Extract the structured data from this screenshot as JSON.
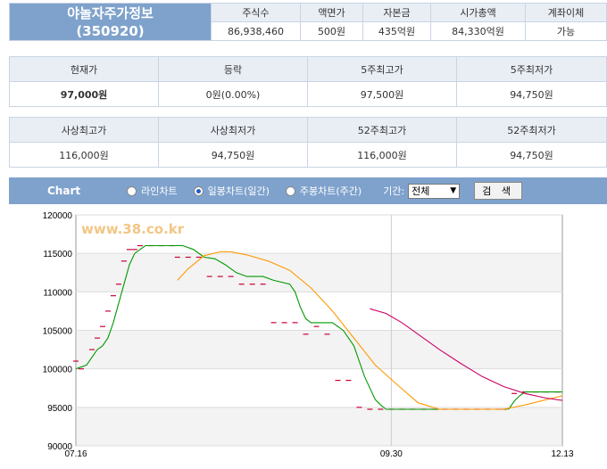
{
  "stock": {
    "name": "야놀자주가정보",
    "code": "(350920)"
  },
  "summary": {
    "headers": [
      "주식수",
      "액면가",
      "자본금",
      "시가총액",
      "계좌이체"
    ],
    "values": [
      "86,938,460",
      "500원",
      "435억원",
      "84,330억원",
      "가능"
    ]
  },
  "price": {
    "headers": [
      "현재가",
      "등락",
      "5주최고가",
      "5주최저가"
    ],
    "values": [
      "97,000원",
      "0원(0.00%)",
      "97,500원",
      "94,750원"
    ]
  },
  "history": {
    "headers": [
      "사상최고가",
      "사상최저가",
      "52주최고가",
      "52주최저가"
    ],
    "values": [
      "116,000원",
      "94,750원",
      "116,000원",
      "94,750원"
    ]
  },
  "chart_bar": {
    "label": "Chart",
    "options": [
      "라인차트",
      "일봉차트(일간)",
      "주봉차트(주간)"
    ],
    "selected_option": "일봉차트(일간)",
    "period_label": "기간:",
    "period_value": "전체",
    "search_label": "검 색"
  },
  "chart_data": {
    "type": "line",
    "watermark": "www.38.co.kr",
    "ylim": [
      90000,
      120000
    ],
    "y_ticks": [
      "120000",
      "115000",
      "110000",
      "105000",
      "100000",
      "95000",
      "90000"
    ],
    "x_ticks": [
      "07.16",
      "09.30",
      "12.13"
    ],
    "colors": {
      "price": "#009900",
      "ma_short": "#ff9900",
      "ma_long": "#cc0066",
      "daily": "#cc0033"
    },
    "series": [
      {
        "name": "price",
        "points": [
          [
            0,
            100000
          ],
          [
            2,
            100500
          ],
          [
            3,
            101500
          ],
          [
            4,
            102500
          ],
          [
            5,
            103000
          ],
          [
            6,
            104000
          ],
          [
            7,
            106000
          ],
          [
            8,
            108500
          ],
          [
            9,
            111000
          ],
          [
            10,
            113500
          ],
          [
            11,
            115000
          ],
          [
            12,
            115500
          ],
          [
            13,
            116000
          ],
          [
            20,
            116000
          ],
          [
            22,
            115500
          ],
          [
            24,
            114500
          ],
          [
            26,
            114300
          ],
          [
            28,
            113500
          ],
          [
            30,
            112500
          ],
          [
            32,
            112000
          ],
          [
            35,
            112000
          ],
          [
            37,
            111500
          ],
          [
            40,
            111000
          ],
          [
            41,
            110000
          ],
          [
            42,
            108000
          ],
          [
            43,
            106500
          ],
          [
            44,
            106000
          ],
          [
            48,
            106000
          ],
          [
            50,
            105000
          ],
          [
            52,
            103000
          ],
          [
            53,
            101000
          ],
          [
            54,
            99000
          ],
          [
            55,
            97500
          ],
          [
            56,
            96000
          ],
          [
            57,
            95300
          ],
          [
            58,
            94750
          ],
          [
            80,
            94750
          ],
          [
            81,
            94800
          ],
          [
            82,
            95800
          ],
          [
            83,
            96500
          ],
          [
            84,
            97000
          ],
          [
            91,
            97000
          ]
        ]
      },
      {
        "name": "ma_short",
        "points": [
          [
            19,
            111500
          ],
          [
            21,
            113000
          ],
          [
            24,
            114700
          ],
          [
            27,
            115200
          ],
          [
            29,
            115200
          ],
          [
            32,
            114800
          ],
          [
            36,
            114000
          ],
          [
            40,
            112800
          ],
          [
            44,
            110500
          ],
          [
            48,
            107500
          ],
          [
            52,
            104000
          ],
          [
            56,
            100500
          ],
          [
            60,
            98000
          ],
          [
            64,
            95600
          ],
          [
            68,
            94750
          ],
          [
            80,
            94750
          ],
          [
            84,
            95300
          ],
          [
            88,
            96000
          ],
          [
            91,
            96500
          ]
        ]
      },
      {
        "name": "ma_long",
        "points": [
          [
            55,
            107800
          ],
          [
            58,
            107200
          ],
          [
            61,
            106000
          ],
          [
            64,
            104500
          ],
          [
            68,
            102500
          ],
          [
            72,
            100700
          ],
          [
            76,
            99000
          ],
          [
            80,
            97700
          ],
          [
            84,
            96800
          ],
          [
            88,
            96200
          ],
          [
            91,
            95900
          ]
        ]
      }
    ],
    "daily_marks": [
      [
        0,
        101000
      ],
      [
        1,
        100000
      ],
      [
        3,
        102500
      ],
      [
        4,
        104000
      ],
      [
        5,
        105500
      ],
      [
        6,
        107500
      ],
      [
        7,
        109500
      ],
      [
        8,
        111000
      ],
      [
        9,
        114000
      ],
      [
        10,
        115500
      ],
      [
        11,
        115500
      ],
      [
        12,
        116000
      ],
      [
        14,
        116000
      ],
      [
        16,
        116000
      ],
      [
        18,
        116000
      ],
      [
        19,
        114500
      ],
      [
        21,
        114500
      ],
      [
        23,
        114500
      ],
      [
        25,
        112000
      ],
      [
        27,
        112000
      ],
      [
        29,
        112000
      ],
      [
        31,
        111000
      ],
      [
        33,
        111000
      ],
      [
        35,
        111000
      ],
      [
        37,
        106000
      ],
      [
        39,
        106000
      ],
      [
        41,
        106000
      ],
      [
        43,
        104500
      ],
      [
        45,
        105500
      ],
      [
        47,
        104500
      ],
      [
        49,
        98500
      ],
      [
        51,
        98500
      ],
      [
        53,
        95000
      ],
      [
        55,
        94750
      ],
      [
        57,
        94750
      ],
      [
        59,
        94750
      ],
      [
        61,
        94750
      ],
      [
        63,
        94750
      ],
      [
        65,
        94750
      ],
      [
        67,
        94750
      ],
      [
        69,
        94750
      ],
      [
        71,
        94750
      ],
      [
        73,
        94750
      ],
      [
        75,
        94750
      ],
      [
        77,
        94750
      ],
      [
        79,
        94750
      ],
      [
        80,
        94750
      ],
      [
        82,
        96800
      ],
      [
        84,
        97000
      ],
      [
        86,
        97000
      ],
      [
        88,
        97000
      ],
      [
        90,
        97000
      ]
    ]
  }
}
